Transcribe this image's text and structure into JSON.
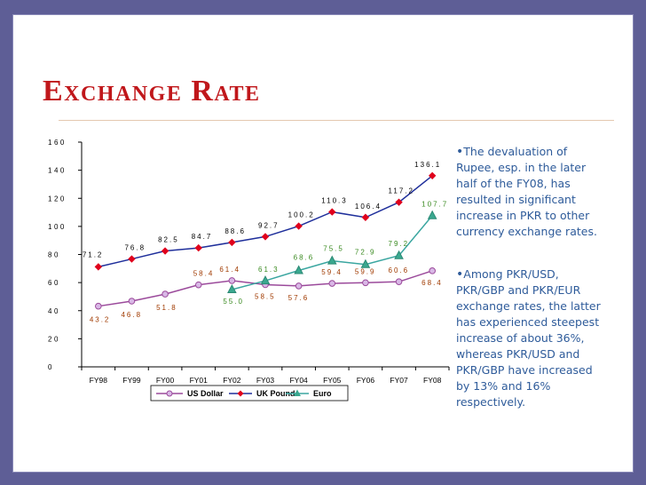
{
  "slide": {
    "title": "Exchange Rate",
    "bullets": [
      "The devaluation of Rupee, esp. in the later half of the FY08, has resulted in significant increase in PKR to other currency exchange rates.",
      "Among PKR/USD, PKR/GBP and PKR/EUR exchange rates, the latter has experienced steepest increase of about 36%, whereas PKR/USD and PKR/GBP have increased by 13% and 16% respectively."
    ]
  },
  "chart_data": {
    "type": "line",
    "categories": [
      "FY98",
      "FY99",
      "FY00",
      "FY01",
      "FY02",
      "FY03",
      "FY04",
      "FY05",
      "FY06",
      "FY07",
      "FY08"
    ],
    "ylim": [
      0,
      160
    ],
    "yticks": [
      0,
      20,
      40,
      60,
      80,
      100,
      120,
      140,
      160
    ],
    "grid": false,
    "legend_position": "bottom",
    "series": [
      {
        "name": "US Dollar",
        "color": "#9b4a9b",
        "marker": "circle",
        "values": [
          43.2,
          46.8,
          51.8,
          58.4,
          61.4,
          58.5,
          57.6,
          59.4,
          59.9,
          60.6,
          68.4
        ],
        "labels": [
          "43.2",
          "46.8",
          "51.8",
          "58.4",
          "61.4",
          "58.5",
          "57.6",
          "59.4",
          "59.9",
          "60.6",
          "68.4"
        ]
      },
      {
        "name": "UK Pound",
        "color": "#1f2f9b",
        "marker": "diamond",
        "values": [
          71.2,
          76.8,
          82.5,
          84.7,
          88.6,
          92.7,
          100.2,
          110.3,
          106.4,
          117.2,
          136.1
        ],
        "labels": [
          "71.2",
          "76.8",
          "82.5",
          "84.7",
          "88.6",
          "92.7",
          "100.2",
          "110.3",
          "106.4",
          "117.2",
          "136.1"
        ]
      },
      {
        "name": "Euro",
        "color": "#3aa6a0",
        "marker": "triangle",
        "values": [
          null,
          null,
          null,
          null,
          55.0,
          61.3,
          68.6,
          75.5,
          72.9,
          79.2,
          107.7
        ],
        "labels": [
          null,
          null,
          null,
          null,
          "55.0",
          "61.3",
          "68.6",
          "75.5",
          "72.9",
          "79.2",
          "107.7"
        ]
      }
    ]
  }
}
